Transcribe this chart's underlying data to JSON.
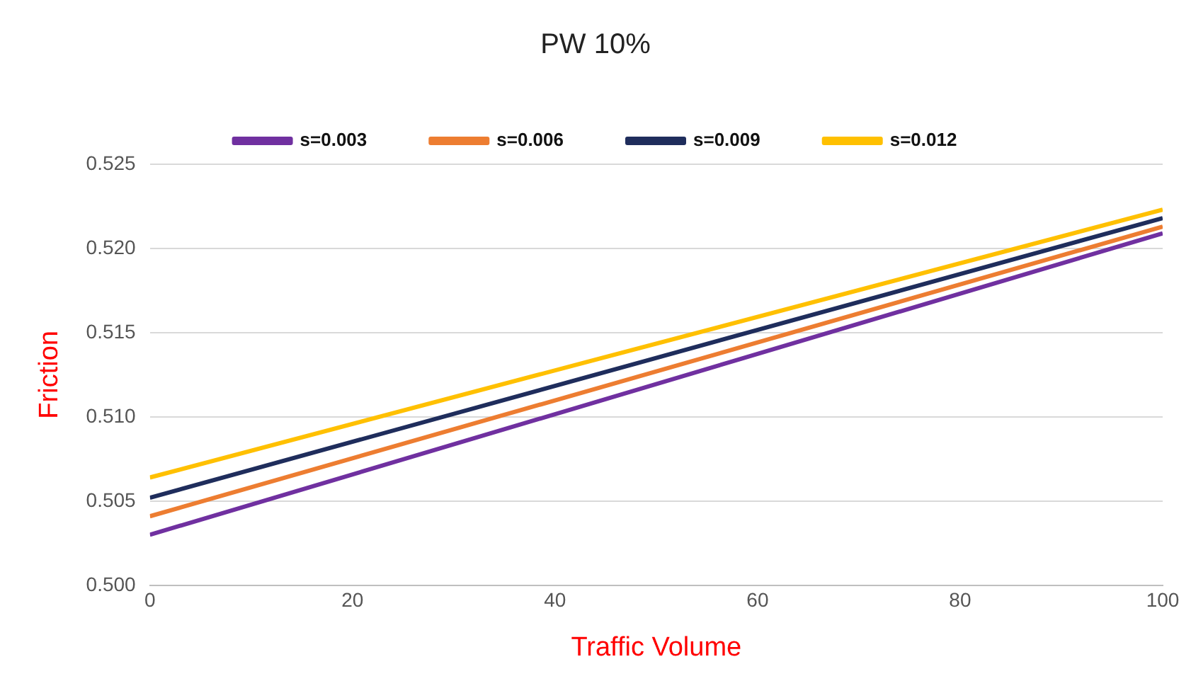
{
  "chart_data": {
    "type": "line",
    "title": "PW 10%",
    "xlabel": "Traffic Volume",
    "ylabel": "Friction",
    "x": [
      0,
      100
    ],
    "series": [
      {
        "name": "s=0.003",
        "color": "#7030a0",
        "values": [
          0.503,
          0.5209
        ]
      },
      {
        "name": "s=0.006",
        "color": "#ed7d31",
        "values": [
          0.5041,
          0.5213
        ]
      },
      {
        "name": "s=0.009",
        "color": "#1f2d5c",
        "values": [
          0.5052,
          0.5218
        ]
      },
      {
        "name": "s=0.012",
        "color": "#ffc000",
        "values": [
          0.5064,
          0.5223
        ]
      }
    ],
    "xlim": [
      0,
      100
    ],
    "xticks": [
      0,
      20,
      40,
      60,
      80,
      100
    ],
    "ylim": [
      0.5,
      0.525
    ],
    "yticks": [
      {
        "value": 0.5,
        "label": "0.500"
      },
      {
        "value": 0.505,
        "label": "0.505"
      },
      {
        "value": 0.51,
        "label": "0.510"
      },
      {
        "value": 0.515,
        "label": "0.515"
      },
      {
        "value": 0.52,
        "label": "0.520"
      },
      {
        "value": 0.525,
        "label": "0.525"
      }
    ],
    "grid": "y",
    "legend": "top",
    "marker": "none",
    "line_style": "solid"
  }
}
